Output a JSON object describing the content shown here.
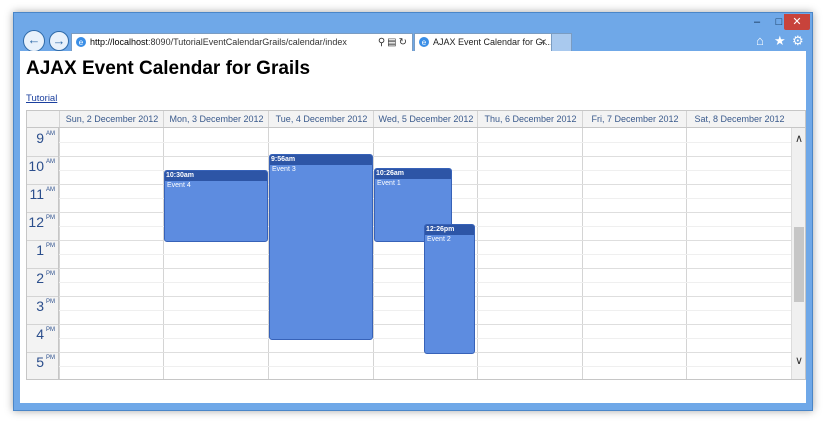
{
  "browser": {
    "window_controls": {
      "minimize": "–",
      "maximize": "□",
      "close": "✕"
    },
    "address": {
      "host": "http://localhost",
      "path": ":8090/TutorialEventCalendarGrails/calendar/index"
    },
    "tab": {
      "label": "AJAX Event Calendar for Gr...",
      "close": "✕"
    },
    "icons": [
      "back-icon",
      "forward-icon",
      "ie-icon",
      "search-icon",
      "refresh-icon",
      "home-icon",
      "favorites-star-icon",
      "gear-icon"
    ]
  },
  "page": {
    "title": "AJAX Event Calendar for Grails",
    "link": "Tutorial"
  },
  "calendar": {
    "days": [
      "Sun, 2 December 2012",
      "Mon, 3 December 2012",
      "Tue, 4 December 2012",
      "Wed, 5 December 2012",
      "Thu, 6 December 2012",
      "Fri, 7 December 2012",
      "Sat, 8 December 2012"
    ],
    "hours": [
      {
        "num": "9",
        "ampm": "AM"
      },
      {
        "num": "10",
        "ampm": "AM"
      },
      {
        "num": "11",
        "ampm": "AM"
      },
      {
        "num": "12",
        "ampm": "PM"
      },
      {
        "num": "1",
        "ampm": "PM"
      },
      {
        "num": "2",
        "ampm": "PM"
      },
      {
        "num": "3",
        "ampm": "PM"
      },
      {
        "num": "4",
        "ampm": "PM"
      },
      {
        "num": "5",
        "ampm": "PM"
      }
    ],
    "events": [
      {
        "day": "Mon, 3 December 2012",
        "time": "10:30am",
        "title": "Event 4"
      },
      {
        "day": "Tue, 4 December 2012",
        "time": "9:56am",
        "title": "Event 3"
      },
      {
        "day": "Wed, 5 December 2012",
        "time": "10:26am",
        "title": "Event 1"
      },
      {
        "day": "Wed, 5 December 2012",
        "time": "12:26pm",
        "title": "Event 2"
      }
    ],
    "scroll": {
      "up": "∧",
      "down": "∨"
    }
  },
  "colors": {
    "event_fill": "#5d8ce0",
    "event_header": "#2d55a6",
    "frame": "#6fa8e8",
    "close": "#c8433b"
  }
}
